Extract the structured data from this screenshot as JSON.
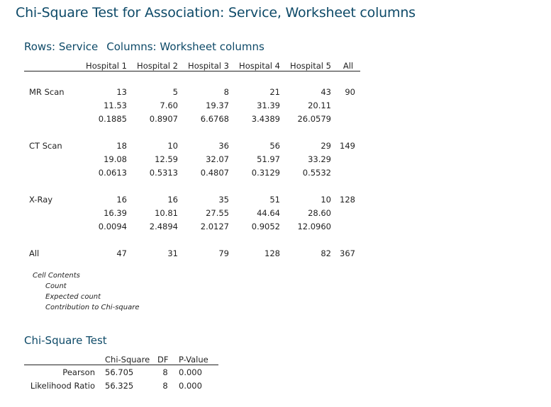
{
  "title": "Chi-Square Test for Association: Service, Worksheet columns",
  "crosstab": {
    "rows_label": "Rows: Service",
    "columns_label": "Columns: Worksheet columns",
    "headers": [
      "Hospital 1",
      "Hospital 2",
      "Hospital 3",
      "Hospital 4",
      "Hospital 5",
      "All"
    ],
    "rows": [
      {
        "label": "MR Scan",
        "count": [
          "13",
          "5",
          "8",
          "21",
          "43"
        ],
        "expected": [
          "11.53",
          "7.60",
          "19.37",
          "31.39",
          "20.11"
        ],
        "contribution": [
          "0.1885",
          "0.8907",
          "6.6768",
          "3.4389",
          "26.0579"
        ],
        "all": "90"
      },
      {
        "label": "CT Scan",
        "count": [
          "18",
          "10",
          "36",
          "56",
          "29"
        ],
        "expected": [
          "19.08",
          "12.59",
          "32.07",
          "51.97",
          "33.29"
        ],
        "contribution": [
          "0.0613",
          "0.5313",
          "0.4807",
          "0.3129",
          "0.5532"
        ],
        "all": "149"
      },
      {
        "label": "X-Ray",
        "count": [
          "16",
          "16",
          "35",
          "51",
          "10"
        ],
        "expected": [
          "16.39",
          "10.81",
          "27.55",
          "44.64",
          "28.60"
        ],
        "contribution": [
          "0.0094",
          "2.4894",
          "2.0127",
          "0.9052",
          "12.0960"
        ],
        "all": "128"
      }
    ],
    "totals": {
      "label": "All",
      "values": [
        "47",
        "31",
        "79",
        "128",
        "82"
      ],
      "all": "367"
    }
  },
  "cell_contents": {
    "heading": "Cell Contents",
    "items": [
      "Count",
      "Expected count",
      "Contribution to Chi-square"
    ]
  },
  "chisq_test": {
    "heading": "Chi-Square Test",
    "headers": [
      "Chi-Square",
      "DF",
      "P-Value"
    ],
    "rows": [
      {
        "label": "Pearson",
        "chi_square": "56.705",
        "df": "8",
        "p_value": "0.000"
      },
      {
        "label": "Likelihood Ratio",
        "chi_square": "56.325",
        "df": "8",
        "p_value": "0.000"
      }
    ]
  }
}
